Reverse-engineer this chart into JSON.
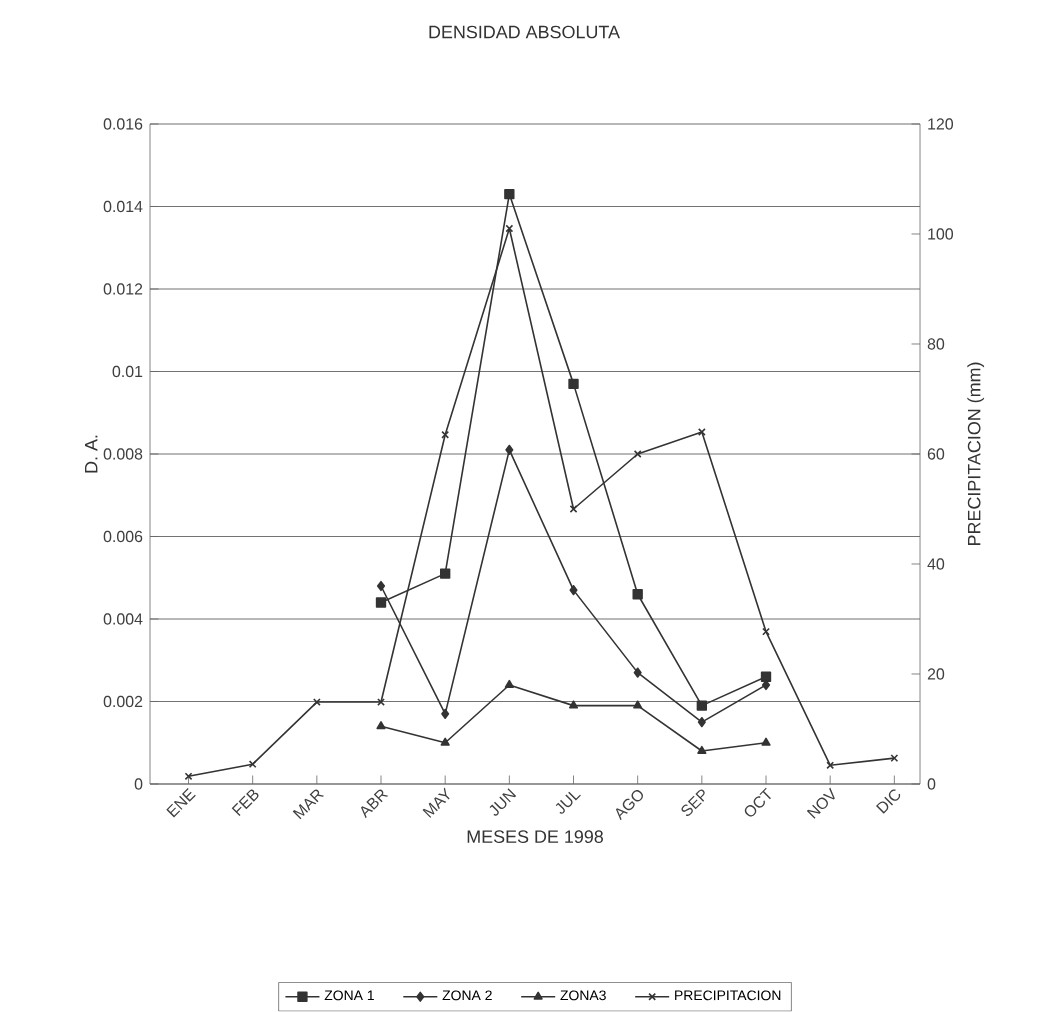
{
  "chart_data": {
    "type": "line",
    "title": "DENSIDAD ABSOLUTA",
    "xlabel": "MESES DE 1998",
    "ylabel": "D. A.",
    "y2label": "PRECIPITACION (mm)",
    "categories": [
      "ENE",
      "FEB",
      "MAR",
      "ABR",
      "MAY",
      "JUN",
      "JUL",
      "AGO",
      "SEP",
      "OCT",
      "NOV",
      "DIC"
    ],
    "series": [
      {
        "name": "ZONA 1",
        "color": "#333333",
        "marker": "square",
        "values": [
          null,
          null,
          null,
          0.0044,
          0.0051,
          0.0143,
          0.0097,
          0.0046,
          0.0019,
          0.0026,
          null,
          null
        ]
      },
      {
        "name": "ZONA 2",
        "color": "#333333",
        "marker": "diamond",
        "values": [
          null,
          null,
          null,
          0.0048,
          0.0017,
          0.0081,
          0.0047,
          0.0027,
          0.0015,
          0.0024,
          null,
          null
        ]
      },
      {
        "name": "ZONA3",
        "color": "#333333",
        "marker": "triangle",
        "values": [
          null,
          null,
          null,
          0.0014,
          0.001,
          0.0024,
          0.0019,
          0.0019,
          0.0008,
          0.001,
          null,
          null
        ]
      },
      {
        "name": "PRECIPITACION",
        "color": "#333333",
        "marker": "cross",
        "axis": "y2",
        "values": [
          1.4,
          3.6,
          14.9,
          14.9,
          63.5,
          101,
          50,
          60,
          64,
          27.7,
          3.4,
          4.7
        ]
      }
    ],
    "ylim": [
      0,
      0.016
    ],
    "yticks": [
      0,
      0.002,
      0.004,
      0.006,
      0.008,
      0.01,
      0.012,
      0.014,
      0.016
    ],
    "y2lim": [
      0,
      120
    ],
    "y2ticks": [
      0,
      20,
      40,
      60,
      80,
      100,
      120
    ],
    "grid": "y",
    "legend": "bottom",
    "line_style": "solid"
  }
}
